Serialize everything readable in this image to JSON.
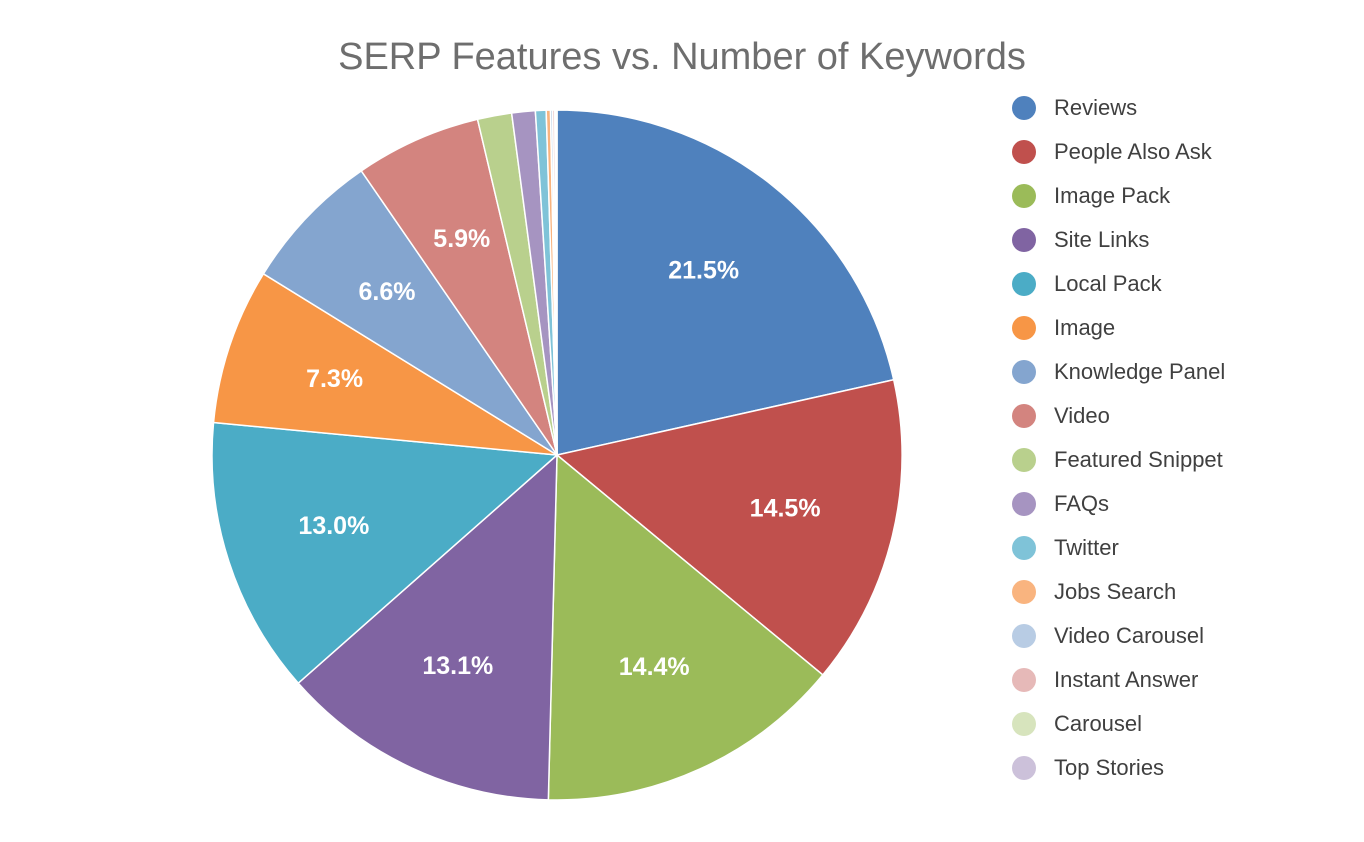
{
  "chart_data": {
    "type": "pie",
    "title": "SERP Features vs. Number of Keywords",
    "legend_position": "right",
    "categories": [
      "Reviews",
      "People Also Ask",
      "Image Pack",
      "Site Links",
      "Local Pack",
      "Image",
      "Knowledge Panel",
      "Video",
      "Featured Snippet",
      "FAQs",
      "Twitter",
      "Jobs Search",
      "Video Carousel",
      "Instant Answer",
      "Carousel",
      "Top Stories"
    ],
    "values": [
      21.5,
      14.5,
      14.4,
      13.1,
      13.0,
      7.3,
      6.6,
      5.9,
      1.6,
      1.1,
      0.5,
      0.2,
      0.1,
      0.1,
      0.05,
      0.05
    ],
    "data_labels": [
      "21.5%",
      "14.5%",
      "14.4%",
      "13.1%",
      "13.0%",
      "7.3%",
      "6.6%",
      "5.9%",
      "",
      "",
      "",
      "",
      "",
      "",
      "",
      ""
    ],
    "colors": [
      "#4f81bd",
      "#c0504d",
      "#9bbb59",
      "#8064a2",
      "#4bacc6",
      "#f79646",
      "#84a5cf",
      "#d3847f",
      "#b9d08d",
      "#a694c1",
      "#7fc3d8",
      "#f9b47f",
      "#b8cce4",
      "#e6b9b8",
      "#d7e4bd",
      "#ccc1da"
    ]
  }
}
